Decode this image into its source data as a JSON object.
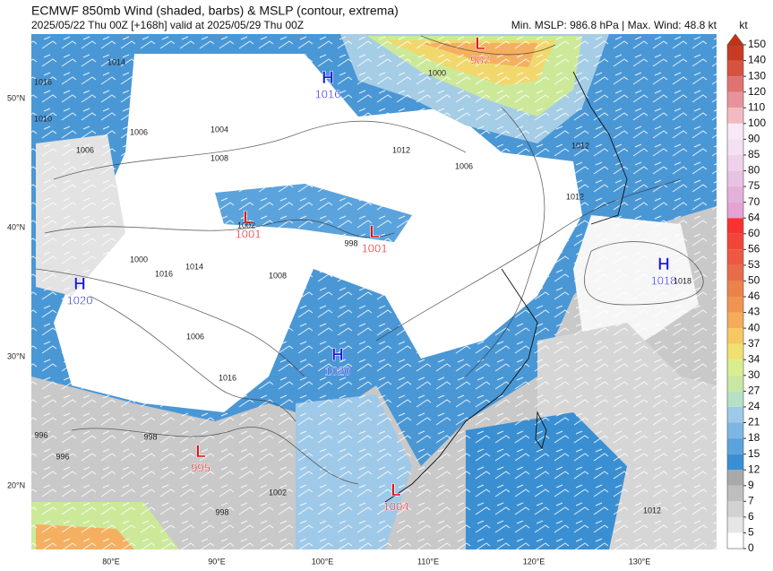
{
  "header": {
    "title": "ECMWF 850mb Wind (shaded, barbs) & MSLP (contour, extrema)",
    "subtitle": "2025/05/22 Thu 00Z [+168h] valid at 2025/05/29 Thu 00Z",
    "stats": "Min. MSLP: 986.8 hPa | Max. Wind: 48.8 kt"
  },
  "colorbar": {
    "unit": "kt",
    "levels": [
      0,
      5,
      6,
      7,
      9,
      12,
      15,
      18,
      21,
      24,
      27,
      30,
      34,
      37,
      40,
      43,
      46,
      50,
      53,
      56,
      60,
      64,
      70,
      75,
      80,
      85,
      90,
      100,
      110,
      120,
      130,
      140,
      150
    ],
    "colors": [
      "#ffffff",
      "#e6e6e6",
      "#d2d2d2",
      "#bebebe",
      "#a9a9a9",
      "#3a8fd2",
      "#5ba3dc",
      "#7db6e2",
      "#9fc9e8",
      "#b6e0c6",
      "#c8e8a2",
      "#d9ed8c",
      "#f0e070",
      "#f6c862",
      "#f4ab5a",
      "#f09452",
      "#ec824a",
      "#e86c48",
      "#ee5842",
      "#f2453a",
      "#f83232",
      "#e6a2d2",
      "#e2b2da",
      "#e8c2e2",
      "#efd2ea",
      "#f4e0f2",
      "#f8eaf5",
      "#f4bac2",
      "#e8939b",
      "#e07272",
      "#d85240",
      "#c83a22"
    ],
    "extend_color": "#c83010"
  },
  "axes": {
    "lat_labels": [
      "50°N",
      "40°N",
      "30°N",
      "20°N"
    ],
    "lon_labels": [
      "80°E",
      "90°E",
      "100°E",
      "110°E",
      "120°E",
      "130°E"
    ]
  },
  "extrema": [
    {
      "type": "H",
      "value": 1016
    },
    {
      "type": "L",
      "value": 987
    },
    {
      "type": "L",
      "value": 1001
    },
    {
      "type": "L",
      "value": 1001
    },
    {
      "type": "H",
      "value": 1018
    },
    {
      "type": "H",
      "value": 1020
    },
    {
      "type": "H",
      "value": 1020
    },
    {
      "type": "L",
      "value": 995
    },
    {
      "type": "L",
      "value": 1004
    }
  ],
  "isobar_labels": [
    1016,
    1014,
    1010,
    1006,
    1006,
    1004,
    1008,
    1012,
    1002,
    998,
    1000,
    1014,
    1016,
    1008,
    1006,
    1016,
    1012,
    996,
    998,
    996,
    1002,
    998,
    1006,
    1012,
    1012,
    1018,
    1000
  ]
}
